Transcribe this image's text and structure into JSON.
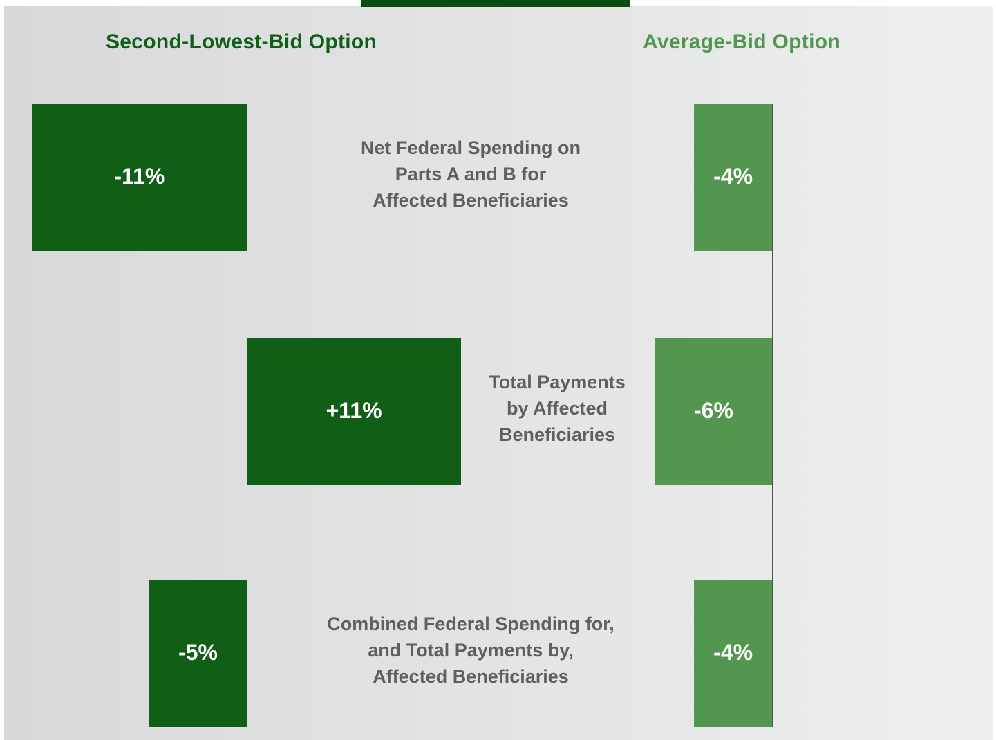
{
  "chart_data": {
    "type": "bar",
    "orientation": "horizontal",
    "categories": [
      "Net Federal Spending on\nParts A and B for\nAffected Beneficiaries",
      "Total Payments\nby Affected\nBeneficiaries",
      "Combined Federal Spending for,\nand Total Payments by,\nAffected Beneficiaries"
    ],
    "series": [
      {
        "name": "Second-Lowest-Bid Option",
        "color": "#115e17",
        "values": [
          -11,
          11,
          -5
        ],
        "value_labels": [
          "-11%",
          "+11%",
          "-5%"
        ]
      },
      {
        "name": "Average-Bid Option",
        "color": "#529650",
        "values": [
          -4,
          -6,
          -4
        ],
        "value_labels": [
          "-4%",
          "-6%",
          "-4%"
        ]
      }
    ]
  }
}
